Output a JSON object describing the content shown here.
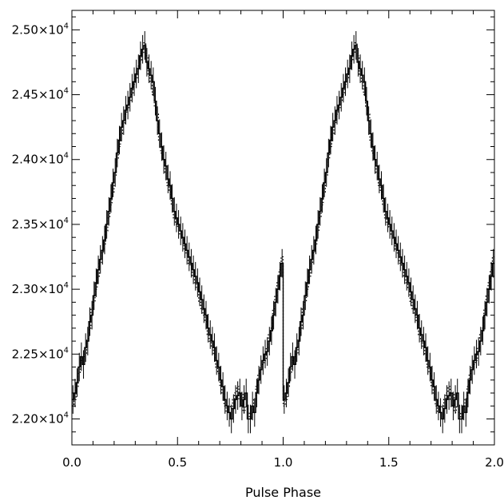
{
  "chart_data": {
    "type": "line",
    "title": "",
    "xlabel": "Pulse Phase",
    "ylabel": "",
    "xlim": [
      0.0,
      2.0
    ],
    "ylim": [
      21800,
      25150
    ],
    "x_ticks": [
      0.0,
      0.5,
      1.0,
      1.5,
      2.0
    ],
    "x_tick_labels": [
      "0.0",
      "0.5",
      "1.0",
      "1.5",
      "2.0"
    ],
    "y_ticks": [
      22000,
      22500,
      23000,
      23500,
      24000,
      24500,
      25000
    ],
    "y_tick_labels": [
      {
        "mantissa": "2.20×10",
        "exp": "4"
      },
      {
        "mantissa": "2.25×10",
        "exp": "4"
      },
      {
        "mantissa": "2.30×10",
        "exp": "4"
      },
      {
        "mantissa": "2.35×10",
        "exp": "4"
      },
      {
        "mantissa": "2.40×10",
        "exp": "4"
      },
      {
        "mantissa": "2.45×10",
        "exp": "4"
      },
      {
        "mantissa": "2.50×10",
        "exp": "4"
      }
    ],
    "grid": false,
    "legend": "none",
    "colors": {
      "line": "#000000",
      "axis": "#000000",
      "background": "#ffffff"
    },
    "series": [
      {
        "style": "solid",
        "phase_step": 0.01,
        "error": 110,
        "x": [
          0.005,
          0.015,
          0.025,
          0.035,
          0.045,
          0.055,
          0.065,
          0.075,
          0.085,
          0.095,
          0.105,
          0.115,
          0.125,
          0.135,
          0.145,
          0.155,
          0.165,
          0.175,
          0.185,
          0.195,
          0.205,
          0.215,
          0.225,
          0.235,
          0.245,
          0.255,
          0.265,
          0.275,
          0.285,
          0.295,
          0.305,
          0.315,
          0.325,
          0.335,
          0.345,
          0.355,
          0.365,
          0.375,
          0.385,
          0.395,
          0.405,
          0.415,
          0.425,
          0.435,
          0.445,
          0.455,
          0.465,
          0.475,
          0.485,
          0.495,
          0.505,
          0.515,
          0.525,
          0.535,
          0.545,
          0.555,
          0.565,
          0.575,
          0.585,
          0.595,
          0.605,
          0.615,
          0.625,
          0.635,
          0.645,
          0.655,
          0.665,
          0.675,
          0.685,
          0.695,
          0.705,
          0.715,
          0.725,
          0.735,
          0.745,
          0.755,
          0.765,
          0.775,
          0.785,
          0.795,
          0.805,
          0.815,
          0.825,
          0.835,
          0.845,
          0.855,
          0.865,
          0.875,
          0.885,
          0.895,
          0.905,
          0.915,
          0.925,
          0.935,
          0.945,
          0.955,
          0.965,
          0.975,
          0.985,
          0.995
        ],
        "y": [
          22150,
          22200,
          22280,
          22400,
          22480,
          22420,
          22550,
          22600,
          22750,
          22800,
          22950,
          23050,
          23150,
          23230,
          23300,
          23380,
          23500,
          23600,
          23700,
          23820,
          23900,
          24050,
          24150,
          24250,
          24300,
          24380,
          24420,
          24480,
          24550,
          24600,
          24660,
          24700,
          24800,
          24850,
          24880,
          24750,
          24700,
          24650,
          24600,
          24450,
          24300,
          24200,
          24100,
          24000,
          23950,
          23850,
          23800,
          23700,
          23600,
          23550,
          23500,
          23450,
          23400,
          23350,
          23300,
          23250,
          23200,
          23150,
          23100,
          23050,
          22980,
          22920,
          22850,
          22800,
          22700,
          22650,
          22600,
          22550,
          22450,
          22400,
          22300,
          22250,
          22150,
          22100,
          22050,
          22000,
          22080,
          22150,
          22180,
          22200,
          22100,
          22150,
          22200,
          22000,
          22000,
          22100,
          22050,
          22200,
          22300,
          22380,
          22450,
          22500,
          22520,
          22600,
          22680,
          22800,
          22900,
          23000,
          23100,
          23200
        ]
      },
      {
        "style": "dotted",
        "phase_step": 0.01,
        "x": [
          0.005,
          0.015,
          0.025,
          0.035,
          0.045,
          0.055,
          0.065,
          0.075,
          0.085,
          0.095,
          0.105,
          0.115,
          0.125,
          0.135,
          0.145,
          0.155,
          0.165,
          0.175,
          0.185,
          0.195,
          0.205,
          0.215,
          0.225,
          0.235,
          0.245,
          0.255,
          0.265,
          0.275,
          0.285,
          0.295,
          0.305,
          0.315,
          0.325,
          0.335,
          0.345,
          0.355,
          0.365,
          0.375,
          0.385,
          0.395,
          0.405,
          0.415,
          0.425,
          0.435,
          0.445,
          0.455,
          0.465,
          0.475,
          0.485,
          0.495,
          0.505,
          0.515,
          0.525,
          0.535,
          0.545,
          0.555,
          0.565,
          0.575,
          0.585,
          0.595,
          0.605,
          0.615,
          0.625,
          0.635,
          0.645,
          0.655,
          0.665,
          0.675,
          0.685,
          0.695,
          0.705,
          0.715,
          0.725,
          0.735,
          0.745,
          0.755,
          0.765,
          0.775,
          0.785,
          0.795,
          0.805,
          0.815,
          0.825,
          0.835,
          0.845,
          0.855,
          0.865,
          0.875,
          0.885,
          0.895,
          0.905,
          0.915,
          0.925,
          0.935,
          0.945,
          0.955,
          0.965,
          0.975,
          0.985,
          0.995
        ],
        "y": [
          22100,
          22150,
          22250,
          22350,
          22450,
          22480,
          22500,
          22620,
          22700,
          22850,
          22900,
          23000,
          23100,
          23200,
          23280,
          23350,
          23450,
          23550,
          23650,
          23750,
          23880,
          24000,
          24100,
          24200,
          24280,
          24350,
          24400,
          24450,
          24500,
          24580,
          24630,
          24720,
          24760,
          24820,
          24900,
          24800,
          24650,
          24600,
          24500,
          24400,
          24350,
          24150,
          24050,
          24000,
          23900,
          23800,
          23750,
          23650,
          23550,
          23500,
          23480,
          23420,
          23380,
          23300,
          23280,
          23200,
          23180,
          23100,
          23050,
          23000,
          22900,
          22850,
          22800,
          22750,
          22650,
          22600,
          22550,
          22500,
          22400,
          22350,
          22250,
          22200,
          22100,
          22050,
          22100,
          22080,
          22150,
          22200,
          22250,
          22150,
          22200,
          22050,
          22100,
          22050,
          22000,
          22050,
          22150,
          22250,
          22350,
          22400,
          22420,
          22450,
          22550,
          22650,
          22700,
          22850,
          22950,
          23050,
          23150,
          23250
        ]
      }
    ]
  }
}
